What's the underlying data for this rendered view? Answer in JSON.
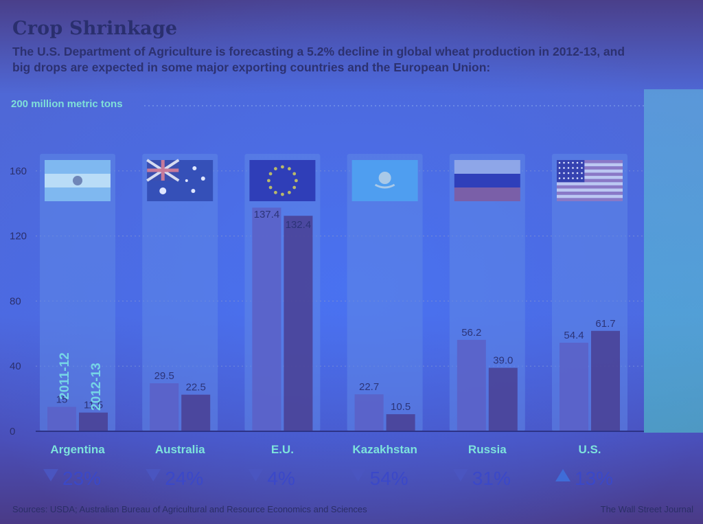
{
  "title": "Crop Shrinkage",
  "subtitle": "The U.S. Department of Agriculture is forecasting a 5.2% decline in global wheat production in 2012-13, and big drops are expected in some major exporting countries and the European Union:",
  "sources": "Sources: USDA; Australian Bureau of Agricultural and Resource Economics and Sciences",
  "credit": "The Wall Street Journal",
  "colors": {
    "bar_old": "#5b62c8",
    "bar_new": "#4a3f93",
    "panel": "#5f86e6",
    "label": "#7ee3dc",
    "down": "#4a55c0",
    "up": "#3f6cd8"
  },
  "chart_data": {
    "type": "bar",
    "title": "Crop Shrinkage",
    "ylabel": "200 million metric tons",
    "ylim": [
      0,
      200
    ],
    "yticks": [
      0,
      40,
      80,
      120,
      160
    ],
    "grid": true,
    "series_labels": [
      "2011-12",
      "2012-13"
    ],
    "categories": [
      "Argentina",
      "Australia",
      "E.U.",
      "Kazakhstan",
      "Russia",
      "U.S."
    ],
    "series": [
      {
        "name": "2011-12",
        "values": [
          15,
          29.5,
          137.4,
          22.7,
          56.2,
          54.4
        ]
      },
      {
        "name": "2012-13",
        "values": [
          11.5,
          22.5,
          132.4,
          10.5,
          39.0,
          61.7
        ]
      }
    ],
    "value_labels": [
      [
        "15",
        "11.5"
      ],
      [
        "29.5",
        "22.5"
      ],
      [
        "137.4",
        "132.4"
      ],
      [
        "22.7",
        "10.5"
      ],
      [
        "56.2",
        "39.0"
      ],
      [
        "54.4",
        "61.7"
      ]
    ],
    "changes": [
      {
        "text": "23%",
        "direction": "down"
      },
      {
        "text": "24%",
        "direction": "down"
      },
      {
        "text": "4%",
        "direction": "down"
      },
      {
        "text": "54%",
        "direction": "down"
      },
      {
        "text": "31%",
        "direction": "down"
      },
      {
        "text": "13%",
        "direction": "up"
      }
    ],
    "flags": [
      "argentina-flag",
      "australia-flag",
      "eu-flag",
      "kazakhstan-flag",
      "russia-flag",
      "us-flag"
    ]
  }
}
